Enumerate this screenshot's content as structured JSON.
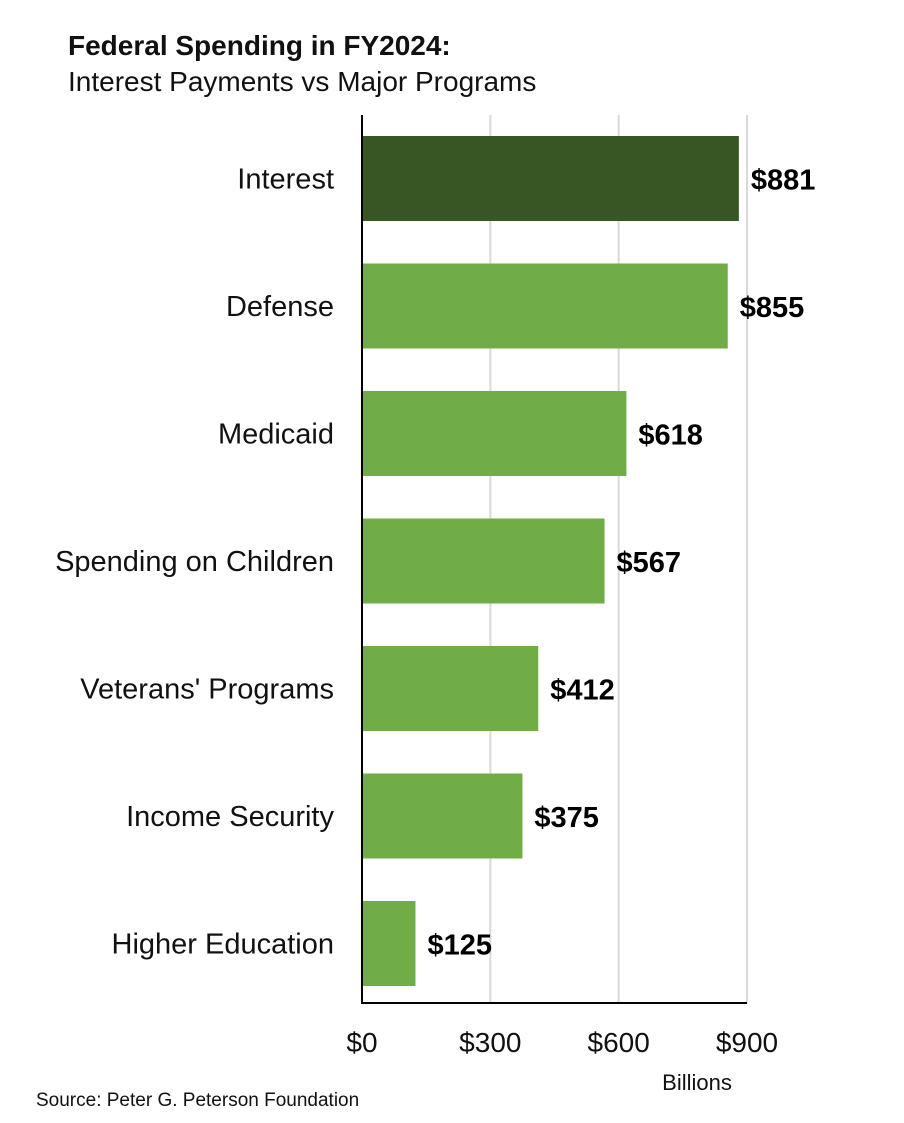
{
  "chart_data": {
    "type": "bar",
    "orientation": "horizontal",
    "title": "Federal Spending in FY2024:",
    "subtitle": "Interest Payments vs Major Programs",
    "categories": [
      "Interest",
      "Defense",
      "Medicaid",
      "Spending on Children",
      "Veterans' Programs",
      "Income Security",
      "Higher Education"
    ],
    "values": [
      881,
      855,
      618,
      567,
      412,
      375,
      125
    ],
    "value_labels": [
      "$881",
      "$855",
      "$618",
      "$567",
      "$412",
      "$375",
      "$125"
    ],
    "x_ticks": [
      0,
      300,
      600,
      900
    ],
    "x_tick_labels": [
      "$0",
      "$300",
      "$600",
      "$900"
    ],
    "xlabel": "Billions",
    "xlim": [
      0,
      900
    ],
    "grid": true,
    "colors": {
      "highlight": "#375623",
      "default": "#70AD47",
      "grid": "#d9d9d9",
      "axis": "#000000"
    },
    "highlight_index": 0
  },
  "source": "Source: Peter G. Peterson Foundation"
}
